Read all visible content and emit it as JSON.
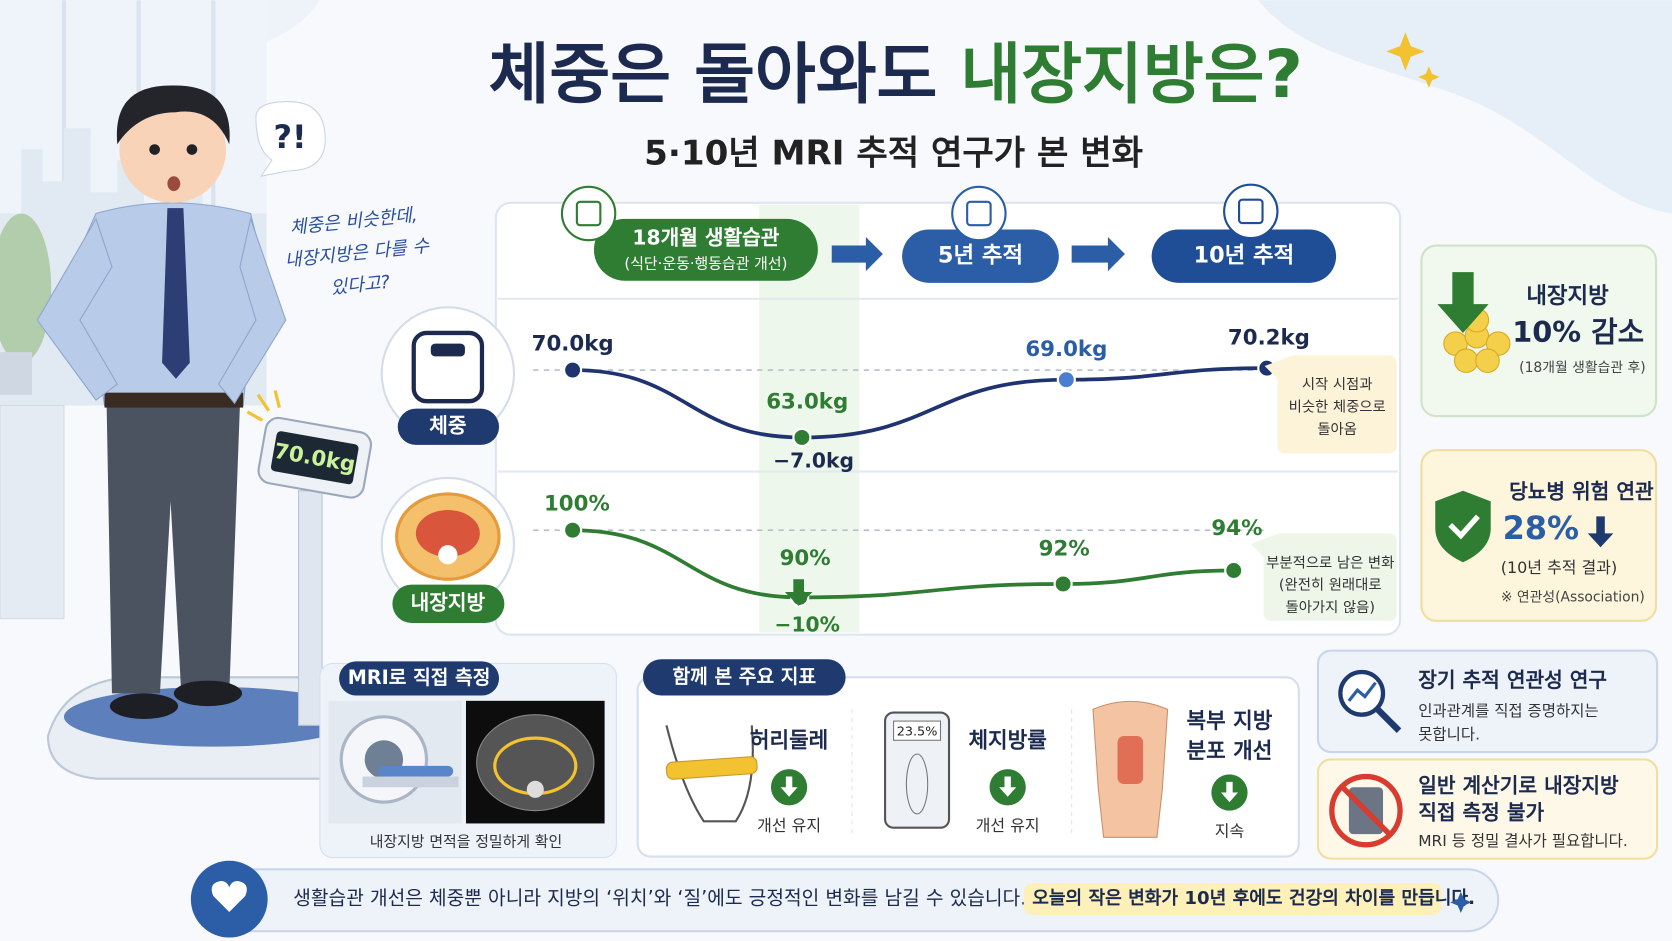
{
  "title": {
    "part1": "체중은 돌아와도",
    "part2": "내장지방은?"
  },
  "subtitle": "5·10년 MRI 추적 연구가 본 변화",
  "speech": {
    "exclaim": "?!",
    "thought": [
      "체중은 비슷한데,",
      "내장지방은 다를 수",
      "있다고?"
    ]
  },
  "scale_display": "70.0kg",
  "timeline": [
    {
      "title": "18개월 생활습관",
      "note": "(식단·운동·행동습관 개선)"
    },
    {
      "title": "5년 추적"
    },
    {
      "title": "10년 추적"
    }
  ],
  "weight": {
    "label": "체중",
    "values": [
      70.0,
      63.0,
      69.0,
      70.2
    ],
    "value_labels": [
      "70.0kg",
      "63.0kg",
      "69.0kg",
      "70.2kg"
    ],
    "change": "−7.0kg",
    "callout": [
      "시작 시점과",
      "비슷한 체중으로",
      "돌아옴"
    ]
  },
  "visceral_fat": {
    "label": "내장지방",
    "values": [
      100,
      90,
      92,
      94
    ],
    "value_labels": [
      "100%",
      "90%",
      "92%",
      "94%"
    ],
    "change": "−10%",
    "callout": [
      "부분적으로 남은 변화",
      "(완전히 원래대로",
      "돌아가지 않음)"
    ]
  },
  "side_cards": [
    {
      "title": "내장지방",
      "highlight": "10% 감소",
      "note": "(18개월 생활습관 후)"
    },
    {
      "title": "당뇨병 위험 연관",
      "highlight": "28%",
      "note": "(10년 추적 결과)",
      "footnote": "※ 연관성(Association)"
    }
  ],
  "mri": {
    "title": "MRI로 직접 측정",
    "caption": "내장지방 면적을 정밀하게 확인"
  },
  "indicators": {
    "title": "함께 본 주요 지표",
    "items": [
      {
        "name": [
          "허리둘레"
        ],
        "status": "개선 유지"
      },
      {
        "name": [
          "체지방률"
        ],
        "display": "23.5%",
        "status": "개선 유지"
      },
      {
        "name": [
          "복부 지방",
          "분포 개선"
        ],
        "status": "지속"
      }
    ]
  },
  "notes": [
    {
      "title": [
        "장기 추적 연관성 연구"
      ],
      "text": [
        "인과관계를 직접 증명하지는",
        "못합니다."
      ]
    },
    {
      "title": [
        "일반 계산기로 내장지방",
        "직접 측정 불가"
      ],
      "text": [
        "MRI 등 정밀 결사가 필요합니다."
      ]
    }
  ],
  "footer": {
    "text": "생활습관 개선은 체중뿐 아니라 지방의 ‘위치’와 ‘질’에도 긍정적인 변화를 남길 수 있습니다.",
    "highlight": "오늘의 작은 변화가 10년 후에도 건강의 차이를 만듭니다."
  }
}
